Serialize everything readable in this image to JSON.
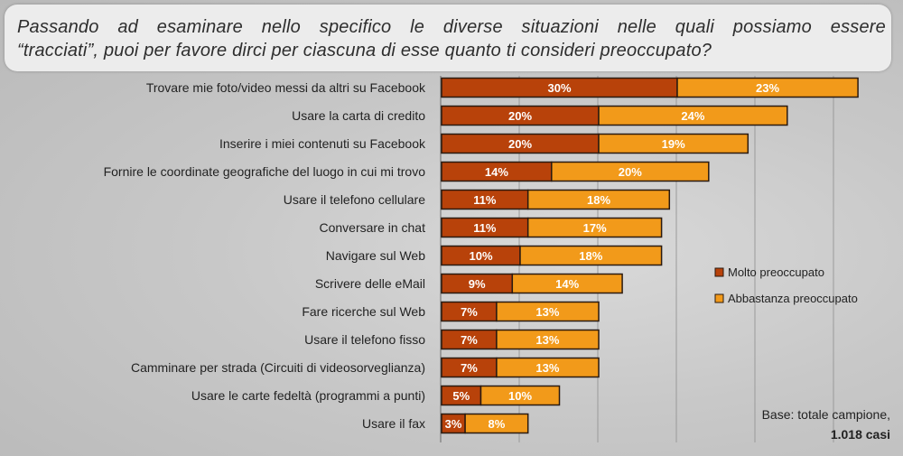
{
  "title": {
    "line1": "Passando ad esaminare nello specifico le diverse situazioni nelle quali possiamo essere",
    "line2": "“tracciati”, puoi per favore dirci per ciascuna di esse quanto ti consideri preoccupato?"
  },
  "chart_data": {
    "type": "bar",
    "orientation": "horizontal",
    "stacked": true,
    "categories": [
      "Trovare mie foto/video messi da altri su Facebook",
      "Usare la carta di credito",
      "Inserire i miei contenuti su Facebook",
      "Fornire le coordinate geografiche del luogo in cui mi trovo",
      "Usare il telefono cellulare",
      "Conversare in chat",
      "Navigare sul Web",
      "Scrivere delle eMail",
      "Fare ricerche sul Web",
      "Usare il telefono fisso",
      "Camminare per strada (Circuiti di videosorveglianza)",
      "Usare le carte fedeltà (programmi a punti)",
      "Usare il fax"
    ],
    "series": [
      {
        "name": "Molto preoccupato",
        "color": "#b8420a",
        "values": [
          30,
          20,
          20,
          14,
          11,
          11,
          10,
          9,
          7,
          7,
          7,
          5,
          3
        ],
        "labels": [
          "30%",
          "20%",
          "20%",
          "14%",
          "11%",
          "11%",
          "10%",
          "9%",
          "7%",
          "7%",
          "7%",
          "5%",
          "3%"
        ]
      },
      {
        "name": "Abbastanza preoccupato",
        "color": "#f29a1a",
        "values": [
          23,
          24,
          19,
          20,
          18,
          17,
          18,
          14,
          13,
          13,
          13,
          10,
          8
        ],
        "labels": [
          "23%",
          "24%",
          "19%",
          "20%",
          "18%",
          "17%",
          "18%",
          "14%",
          "13%",
          "13%",
          "13%",
          "10%",
          "8%"
        ]
      }
    ],
    "xlim": [
      0,
      55
    ],
    "grid": true,
    "legend_position": "right"
  },
  "base": {
    "line1": "Base: totale campione,",
    "line2": "1.018 casi"
  }
}
